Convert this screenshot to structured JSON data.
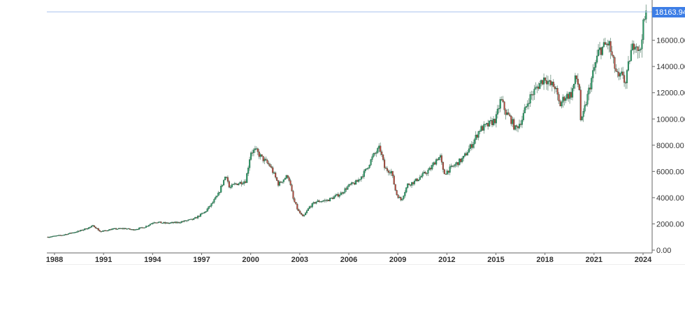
{
  "chart_data": {
    "type": "candlestick",
    "title": "",
    "xlabel": "",
    "ylabel": "",
    "interval": "monthly",
    "ylim": [
      0,
      18163.94
    ],
    "grid": false,
    "legend": null,
    "last_price": 18163.94,
    "last_price_label": "18163.94",
    "y_ticks": [
      {
        "value": 0,
        "label": "0.00"
      },
      {
        "value": 2000,
        "label": "2000.00"
      },
      {
        "value": 4000,
        "label": "4000.00"
      },
      {
        "value": 6000,
        "label": "6000.00"
      },
      {
        "value": 8000,
        "label": "8000.00"
      },
      {
        "value": 10000,
        "label": "10000.00"
      },
      {
        "value": 12000,
        "label": "12000.00"
      },
      {
        "value": 14000,
        "label": "14000.00"
      },
      {
        "value": 16000,
        "label": "16000.00"
      }
    ],
    "x_ticks": [
      "1988",
      "1991",
      "1994",
      "1997",
      "2000",
      "2003",
      "2006",
      "2009",
      "2012",
      "2015",
      "2018",
      "2021",
      "2024"
    ],
    "x_range": [
      1987.5,
      2024.35
    ],
    "anchors": [
      [
        1987.6,
        1000
      ],
      [
        1988.5,
        1150
      ],
      [
        1989.5,
        1450
      ],
      [
        1990.4,
        1850
      ],
      [
        1990.8,
        1400
      ],
      [
        1991.5,
        1600
      ],
      [
        1992.3,
        1650
      ],
      [
        1992.8,
        1550
      ],
      [
        1993.5,
        1750
      ],
      [
        1994.1,
        2150
      ],
      [
        1994.8,
        2050
      ],
      [
        1995.5,
        2100
      ],
      [
        1996.5,
        2350
      ],
      [
        1997.2,
        2900
      ],
      [
        1997.6,
        3500
      ],
      [
        1998.0,
        4200
      ],
      [
        1998.5,
        5800
      ],
      [
        1998.7,
        4700
      ],
      [
        1999.0,
        5000
      ],
      [
        1999.7,
        5300
      ],
      [
        2000.0,
        7500
      ],
      [
        2000.3,
        7600
      ],
      [
        2000.7,
        7000
      ],
      [
        2001.2,
        6400
      ],
      [
        2001.7,
        5000
      ],
      [
        2002.0,
        5400
      ],
      [
        2002.3,
        5700
      ],
      [
        2002.6,
        3900
      ],
      [
        2002.9,
        3000
      ],
      [
        2003.2,
        2500
      ],
      [
        2003.6,
        3300
      ],
      [
        2004.0,
        3700
      ],
      [
        2004.7,
        3800
      ],
      [
        2005.5,
        4300
      ],
      [
        2006.0,
        4900
      ],
      [
        2006.5,
        5200
      ],
      [
        2007.0,
        6000
      ],
      [
        2007.5,
        7200
      ],
      [
        2007.9,
        7800
      ],
      [
        2008.2,
        6200
      ],
      [
        2008.6,
        6000
      ],
      [
        2008.9,
        4300
      ],
      [
        2009.2,
        3800
      ],
      [
        2009.6,
        5000
      ],
      [
        2010.0,
        5200
      ],
      [
        2010.5,
        5700
      ],
      [
        2011.0,
        6200
      ],
      [
        2011.4,
        7000
      ],
      [
        2011.6,
        7100
      ],
      [
        2011.8,
        5800
      ],
      [
        2012.1,
        6100
      ],
      [
        2012.5,
        6500
      ],
      [
        2013.0,
        7000
      ],
      [
        2013.6,
        8200
      ],
      [
        2014.0,
        9200
      ],
      [
        2014.5,
        9500
      ],
      [
        2015.0,
        10000
      ],
      [
        2015.3,
        11500
      ],
      [
        2015.6,
        10500
      ],
      [
        2015.9,
        10000
      ],
      [
        2016.2,
        9200
      ],
      [
        2016.6,
        10000
      ],
      [
        2017.0,
        11500
      ],
      [
        2017.5,
        12400
      ],
      [
        2018.0,
        13200
      ],
      [
        2018.3,
        12600
      ],
      [
        2018.6,
        12500
      ],
      [
        2018.9,
        11000
      ],
      [
        2019.2,
        11700
      ],
      [
        2019.6,
        11900
      ],
      [
        2019.9,
        13200
      ],
      [
        2020.1,
        12300
      ],
      [
        2020.2,
        9500
      ],
      [
        2020.5,
        11200
      ],
      [
        2020.9,
        13300
      ],
      [
        2021.3,
        15200
      ],
      [
        2021.7,
        15600
      ],
      [
        2021.9,
        15800
      ],
      [
        2022.2,
        14200
      ],
      [
        2022.5,
        13000
      ],
      [
        2022.8,
        13500
      ],
      [
        2022.9,
        12400
      ],
      [
        2023.2,
        14800
      ],
      [
        2023.5,
        16000
      ],
      [
        2023.7,
        15400
      ],
      [
        2023.8,
        14800
      ],
      [
        2023.95,
        16700
      ],
      [
        2024.15,
        17800
      ],
      [
        2024.25,
        18163.94
      ]
    ]
  },
  "colors": {
    "up": "#2e9e6a",
    "down": "#c0463e",
    "wick": "#1a4a32",
    "axis": "#666666",
    "price_line": "#b9cdf0",
    "price_tag": "#3d7ee6"
  }
}
